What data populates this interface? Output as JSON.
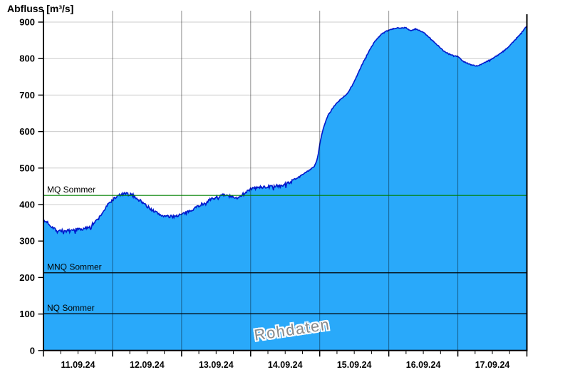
{
  "colors": {
    "area_fill": "#29A9FA",
    "area_edge": "#0018CC",
    "grid_horizontal": "#CCCCCC",
    "grid_vertical": "rgba(0,0,0,0.42)",
    "axis": "#000000",
    "mq_line": "#008000",
    "ref_line": "#000000",
    "watermark_text": "#8A8A8A"
  },
  "chart_data": {
    "type": "area",
    "title": "Abfluss [m³/s]",
    "ylabel": "Abfluss [m³/s]",
    "watermark": "Rohdaten",
    "grid": true,
    "ylim": [
      0,
      900
    ],
    "y_ticks": [
      0,
      100,
      200,
      300,
      400,
      500,
      600,
      700,
      800,
      900
    ],
    "x_days": 7,
    "x_tick_labels": [
      "11.09.24",
      "12.09.24",
      "13.09.24",
      "14.09.24",
      "15.09.24",
      "16.09.24",
      "17.09.24"
    ],
    "minor_x_ticks_per_day": 4,
    "reference_lines": [
      {
        "label": "MQ Sommer",
        "value": 425,
        "color": "#008000"
      },
      {
        "label": "MNQ Sommer",
        "value": 213,
        "color": "#000000"
      },
      {
        "label": "NQ Sommer",
        "value": 101,
        "color": "#000000"
      }
    ],
    "noise_amplitude": 4,
    "series": [
      {
        "name": "Abfluss",
        "unit": "m³/s",
        "points": [
          [
            0.0,
            352
          ],
          [
            0.05,
            354
          ],
          [
            0.1,
            342
          ],
          [
            0.2,
            330
          ],
          [
            0.32,
            327
          ],
          [
            0.42,
            329
          ],
          [
            0.5,
            334
          ],
          [
            0.58,
            332
          ],
          [
            0.65,
            338
          ],
          [
            0.72,
            347
          ],
          [
            0.8,
            362
          ],
          [
            0.88,
            385
          ],
          [
            0.95,
            404
          ],
          [
            1.02,
            416
          ],
          [
            1.1,
            426
          ],
          [
            1.18,
            430
          ],
          [
            1.28,
            427
          ],
          [
            1.38,
            414
          ],
          [
            1.48,
            399
          ],
          [
            1.58,
            384
          ],
          [
            1.7,
            371
          ],
          [
            1.82,
            366
          ],
          [
            1.92,
            369
          ],
          [
            2.02,
            374
          ],
          [
            2.12,
            383
          ],
          [
            2.25,
            397
          ],
          [
            2.38,
            410
          ],
          [
            2.5,
            420
          ],
          [
            2.6,
            426
          ],
          [
            2.7,
            423
          ],
          [
            2.78,
            416
          ],
          [
            2.88,
            428
          ],
          [
            2.98,
            441
          ],
          [
            3.08,
            446
          ],
          [
            3.2,
            448
          ],
          [
            3.35,
            450
          ],
          [
            3.48,
            454
          ],
          [
            3.6,
            464
          ],
          [
            3.72,
            479
          ],
          [
            3.85,
            494
          ],
          [
            3.93,
            506
          ],
          [
            3.98,
            535
          ],
          [
            4.0,
            568
          ],
          [
            4.06,
            615
          ],
          [
            4.12,
            645
          ],
          [
            4.2,
            668
          ],
          [
            4.3,
            688
          ],
          [
            4.4,
            703
          ],
          [
            4.5,
            737
          ],
          [
            4.6,
            778
          ],
          [
            4.7,
            816
          ],
          [
            4.8,
            848
          ],
          [
            4.9,
            868
          ],
          [
            5.0,
            878
          ],
          [
            5.12,
            884
          ],
          [
            5.25,
            885
          ],
          [
            5.32,
            875
          ],
          [
            5.38,
            882
          ],
          [
            5.5,
            872
          ],
          [
            5.6,
            856
          ],
          [
            5.7,
            838
          ],
          [
            5.8,
            820
          ],
          [
            5.92,
            809
          ],
          [
            6.0,
            806
          ],
          [
            6.08,
            792
          ],
          [
            6.18,
            784
          ],
          [
            6.28,
            779
          ],
          [
            6.38,
            788
          ],
          [
            6.5,
            800
          ],
          [
            6.62,
            815
          ],
          [
            6.72,
            829
          ],
          [
            6.82,
            850
          ],
          [
            6.9,
            866
          ],
          [
            6.96,
            880
          ],
          [
            7.0,
            890
          ]
        ]
      }
    ]
  }
}
